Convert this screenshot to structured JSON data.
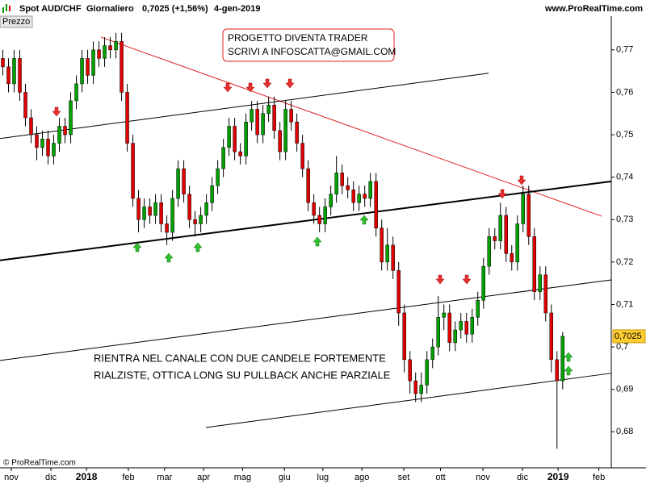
{
  "header": {
    "instrument": "Spot AUD/CHF",
    "period": "Giornaliero",
    "quote": "0,7025 (+1,56%)",
    "date": "4-gen-2019",
    "site": "www.ProRealTime.com",
    "panel": "Prezzo",
    "copyright": "© ProRealTime.com"
  },
  "annotations": {
    "box_line1": "PROGETTO DIVENTA TRADER",
    "box_line2": "SCRIVI A INFOSCATTA@GMAIL.COM",
    "comment_line1": "RIENTRA NEL CANALE CON DUE CANDELE FORTEMENTE",
    "comment_line2": "RIALZISTE, OTTICA LONG SU PULLBACK ANCHE PARZIALE"
  },
  "chart_data": {
    "type": "candlestick",
    "up_color": "#00a000",
    "down_color": "#e00000",
    "xlim": [
      -0.5,
      107.6
    ],
    "ylim": [
      0.6715,
      0.7751
    ],
    "xticks": [
      {
        "value": 1.5,
        "label": "nov"
      },
      {
        "value": 8.5,
        "label": "dic"
      },
      {
        "value": 14.8,
        "label": "2018"
      },
      {
        "value": 22.2,
        "label": "feb"
      },
      {
        "value": 28.6,
        "label": "mar"
      },
      {
        "value": 35.5,
        "label": "apr"
      },
      {
        "value": 42.4,
        "label": "mag"
      },
      {
        "value": 49.8,
        "label": "giu"
      },
      {
        "value": 56.6,
        "label": "lug"
      },
      {
        "value": 63.5,
        "label": "ago"
      },
      {
        "value": 70.9,
        "label": "set"
      },
      {
        "value": 77.4,
        "label": "ott"
      },
      {
        "value": 84.9,
        "label": "nov"
      },
      {
        "value": 91.9,
        "label": "dic"
      },
      {
        "value": 98.2,
        "label": "2019"
      },
      {
        "value": 105.4,
        "label": "feb"
      }
    ],
    "yticks": [
      {
        "value": 0.77,
        "label": "0,77"
      },
      {
        "value": 0.76,
        "label": "0,76"
      },
      {
        "value": 0.75,
        "label": "0,75"
      },
      {
        "value": 0.74,
        "label": "0,74"
      },
      {
        "value": 0.73,
        "label": "0,73"
      },
      {
        "value": 0.72,
        "label": "0,72"
      },
      {
        "value": 0.71,
        "label": "0,71"
      },
      {
        "value": 0.7,
        "label": "0,7"
      },
      {
        "value": 0.69,
        "label": "0,69"
      },
      {
        "value": 0.68,
        "label": "0,68"
      }
    ],
    "last_price": {
      "value": 0.7025,
      "label": "0,7025"
    },
    "open": [
      0.768,
      0.766,
      0.762,
      0.768,
      0.76,
      0.754,
      0.75,
      0.747,
      0.749,
      0.745,
      0.748,
      0.752,
      0.75,
      0.758,
      0.762,
      0.768,
      0.764,
      0.77,
      0.768,
      0.771,
      0.77,
      0.772,
      0.76,
      0.748,
      0.735,
      0.73,
      0.733,
      0.731,
      0.734,
      0.729,
      0.727,
      0.735,
      0.742,
      0.736,
      0.73,
      0.729,
      0.731,
      0.734,
      0.738,
      0.742,
      0.747,
      0.752,
      0.746,
      0.745,
      0.753,
      0.756,
      0.75,
      0.755,
      0.757,
      0.751,
      0.746,
      0.756,
      0.753,
      0.748,
      0.742,
      0.734,
      0.731,
      0.729,
      0.733,
      0.736,
      0.741,
      0.738,
      0.737,
      0.734,
      0.736,
      0.735,
      0.739,
      0.728,
      0.72,
      0.724,
      0.718,
      0.708,
      0.697,
      0.692,
      0.689,
      0.691,
      0.697,
      0.7,
      0.707,
      0.708,
      0.701,
      0.704,
      0.706,
      0.703,
      0.707,
      0.711,
      0.719,
      0.726,
      0.725,
      0.731,
      0.722,
      0.72,
      0.729,
      0.736,
      0.726,
      0.713,
      0.717,
      0.708,
      0.697,
      0.692
    ],
    "high": [
      0.77,
      0.768,
      0.77,
      0.77,
      0.762,
      0.756,
      0.752,
      0.751,
      0.751,
      0.75,
      0.754,
      0.754,
      0.76,
      0.764,
      0.77,
      0.77,
      0.772,
      0.772,
      0.773,
      0.773,
      0.774,
      0.774,
      0.762,
      0.75,
      0.737,
      0.735,
      0.735,
      0.736,
      0.736,
      0.731,
      0.737,
      0.744,
      0.744,
      0.738,
      0.732,
      0.733,
      0.736,
      0.74,
      0.744,
      0.749,
      0.754,
      0.754,
      0.748,
      0.755,
      0.758,
      0.758,
      0.757,
      0.759,
      0.759,
      0.753,
      0.758,
      0.758,
      0.755,
      0.75,
      0.744,
      0.736,
      0.733,
      0.735,
      0.738,
      0.745,
      0.743,
      0.74,
      0.739,
      0.738,
      0.738,
      0.741,
      0.741,
      0.73,
      0.728,
      0.726,
      0.72,
      0.71,
      0.699,
      0.694,
      0.694,
      0.699,
      0.702,
      0.712,
      0.71,
      0.71,
      0.706,
      0.708,
      0.708,
      0.709,
      0.713,
      0.721,
      0.728,
      0.728,
      0.734,
      0.733,
      0.724,
      0.731,
      0.738,
      0.738,
      0.728,
      0.719,
      0.719,
      0.71,
      0.699,
      0.7035
    ],
    "low": [
      0.764,
      0.76,
      0.76,
      0.758,
      0.752,
      0.748,
      0.744,
      0.745,
      0.743,
      0.743,
      0.746,
      0.748,
      0.748,
      0.756,
      0.76,
      0.762,
      0.762,
      0.766,
      0.766,
      0.768,
      0.768,
      0.758,
      0.746,
      0.733,
      0.727,
      0.728,
      0.729,
      0.729,
      0.727,
      0.724,
      0.725,
      0.733,
      0.734,
      0.728,
      0.726,
      0.727,
      0.729,
      0.732,
      0.736,
      0.74,
      0.745,
      0.744,
      0.743,
      0.743,
      0.751,
      0.748,
      0.748,
      0.753,
      0.749,
      0.744,
      0.744,
      0.751,
      0.746,
      0.74,
      0.732,
      0.729,
      0.727,
      0.727,
      0.731,
      0.734,
      0.736,
      0.735,
      0.732,
      0.732,
      0.733,
      0.733,
      0.726,
      0.718,
      0.718,
      0.716,
      0.705,
      0.694,
      0.689,
      0.687,
      0.687,
      0.689,
      0.695,
      0.698,
      0.704,
      0.699,
      0.699,
      0.702,
      0.701,
      0.701,
      0.705,
      0.709,
      0.717,
      0.723,
      0.723,
      0.72,
      0.718,
      0.718,
      0.727,
      0.724,
      0.711,
      0.711,
      0.706,
      0.694,
      0.676,
      0.69
    ],
    "close": [
      0.766,
      0.762,
      0.768,
      0.76,
      0.754,
      0.75,
      0.747,
      0.749,
      0.745,
      0.748,
      0.752,
      0.75,
      0.758,
      0.762,
      0.768,
      0.764,
      0.77,
      0.768,
      0.771,
      0.77,
      0.772,
      0.76,
      0.748,
      0.735,
      0.73,
      0.733,
      0.731,
      0.734,
      0.729,
      0.727,
      0.735,
      0.742,
      0.736,
      0.73,
      0.729,
      0.731,
      0.734,
      0.738,
      0.742,
      0.747,
      0.752,
      0.746,
      0.745,
      0.753,
      0.756,
      0.75,
      0.755,
      0.757,
      0.751,
      0.746,
      0.756,
      0.753,
      0.748,
      0.742,
      0.734,
      0.731,
      0.729,
      0.733,
      0.736,
      0.741,
      0.738,
      0.737,
      0.734,
      0.736,
      0.735,
      0.739,
      0.728,
      0.72,
      0.724,
      0.718,
      0.708,
      0.697,
      0.692,
      0.689,
      0.691,
      0.697,
      0.7,
      0.707,
      0.708,
      0.701,
      0.704,
      0.706,
      0.703,
      0.707,
      0.711,
      0.719,
      0.726,
      0.725,
      0.731,
      0.722,
      0.72,
      0.729,
      0.736,
      0.726,
      0.713,
      0.717,
      0.708,
      0.697,
      0.692,
      0.7025
    ],
    "trendlines": [
      {
        "color": "#e02020",
        "width": 1,
        "x": [
          17.36,
          105.9
        ],
        "y": [
          0.773,
          0.7308
        ]
      },
      {
        "color": "#000000",
        "width": 1,
        "x": [
          -0.5,
          85.9
        ],
        "y": [
          0.7491,
          0.7645
        ]
      },
      {
        "color": "#000000",
        "width": 2,
        "x": [
          -0.5,
          107.6
        ],
        "y": [
          0.7204,
          0.739
        ]
      },
      {
        "color": "#000000",
        "width": 1,
        "x": [
          -0.5,
          107.6
        ],
        "y": [
          0.6968,
          0.7158
        ]
      },
      {
        "color": "#000000",
        "width": 1,
        "x": [
          35.9,
          107.6
        ],
        "y": [
          0.681,
          0.6938
        ]
      }
    ]
  }
}
